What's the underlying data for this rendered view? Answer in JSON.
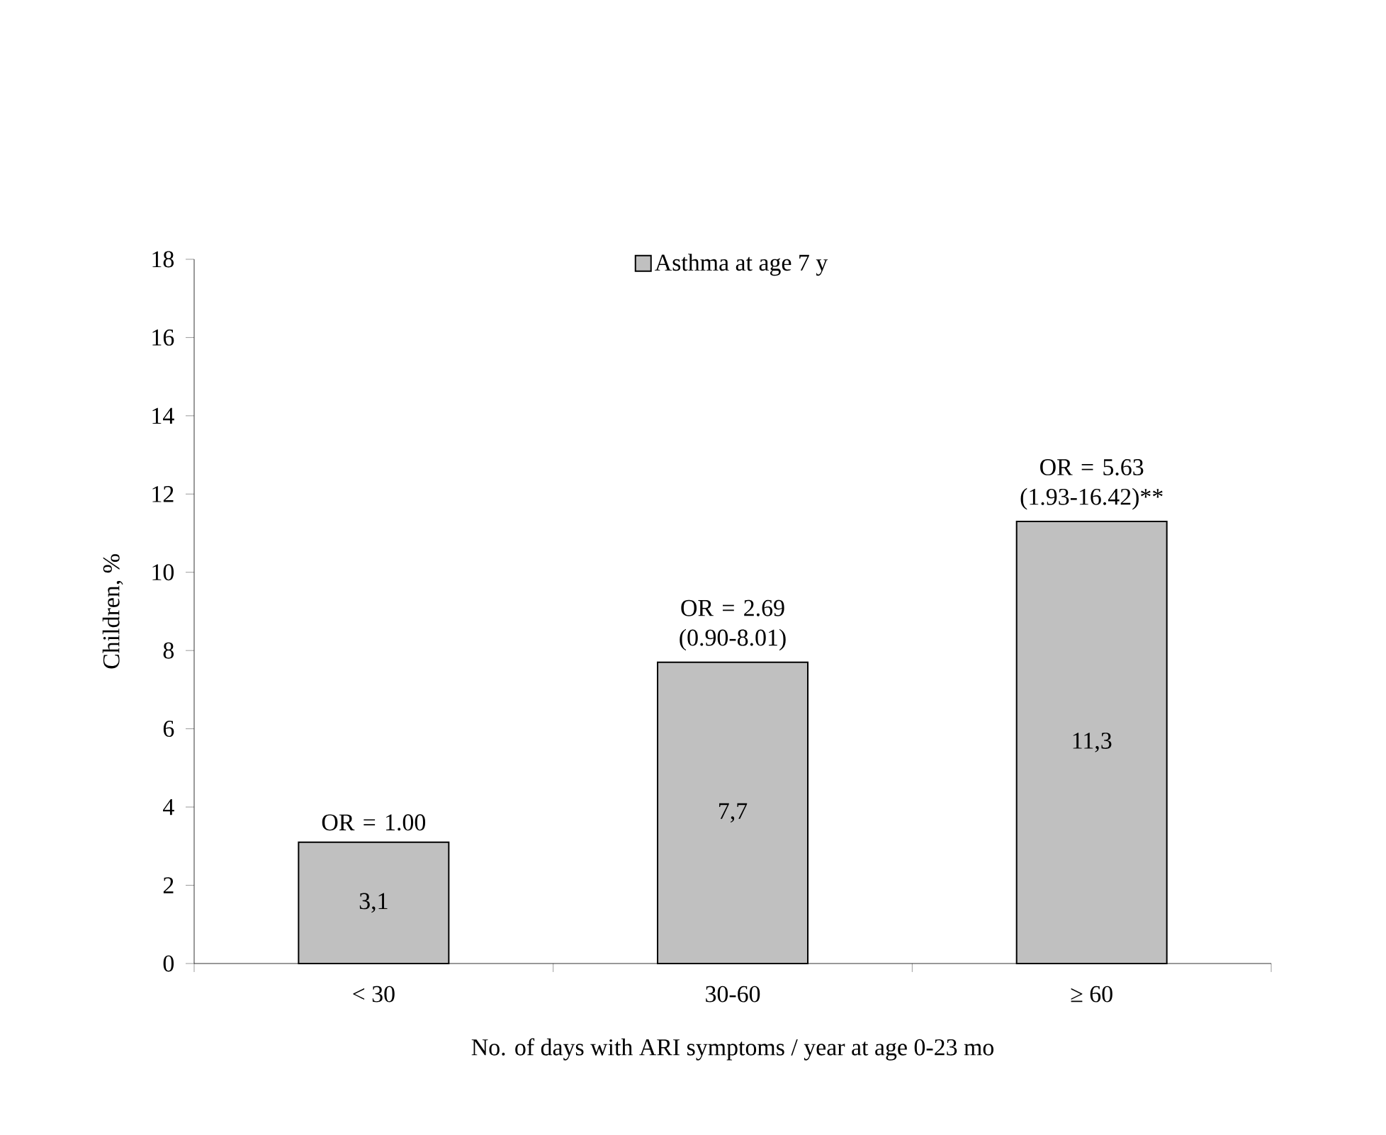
{
  "chart_data": {
    "type": "bar",
    "categories": [
      "< 30",
      "30-60",
      "≥ 60"
    ],
    "series": [
      {
        "name": "Asthma at age 7 y",
        "color": "#c0c0c0",
        "values": [
          3.1,
          7.7,
          11.3
        ],
        "value_labels": [
          "3,1",
          "7,7",
          "11,3"
        ]
      }
    ],
    "xlabel": "No. of days with ARI symptoms / year at age 0-23 mo",
    "ylabel": "Children, %",
    "ylim": [
      0,
      18
    ],
    "yticks": [
      0,
      2,
      4,
      6,
      8,
      10,
      12,
      14,
      16,
      18
    ],
    "legend": "top",
    "annotations": [
      {
        "text": "OR = 1.00",
        "x": "< 30",
        "y": 3.1
      },
      {
        "text": "OR = 2.69 (0.90-8.01)",
        "x": "30-60",
        "y": 7.7
      },
      {
        "text": "OR = 5.63 (1.93-16.42)**",
        "x": "≥ 60",
        "y": 11.3
      }
    ]
  }
}
